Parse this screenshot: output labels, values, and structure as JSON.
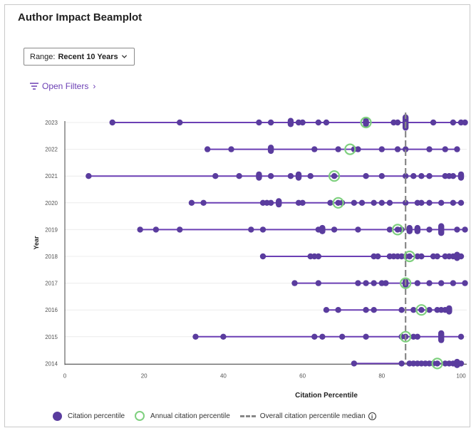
{
  "page": {
    "title": "Author Impact Beamplot",
    "range_label": "Range:",
    "range_value": "Recent 10 Years",
    "open_filters": "Open Filters"
  },
  "legend": {
    "citation": "Citation percentile",
    "annual": "Annual citation percentile",
    "median": "Overall citation percentile median"
  },
  "colors": {
    "accent": "#6b3fb4",
    "dot": "#5a3c9e",
    "ring": "#7fd07f",
    "median": "#888888"
  },
  "chart_data": {
    "type": "scatter",
    "xlabel": "Citation Percentile",
    "ylabel": "Year",
    "xlim": [
      0,
      100
    ],
    "xticks": [
      0,
      20,
      40,
      60,
      80,
      100
    ],
    "categories": [
      "2023",
      "2022",
      "2021",
      "2020",
      "2019",
      "2018",
      "2017",
      "2016",
      "2015",
      "2014"
    ],
    "median": 86,
    "series": [
      {
        "year": "2023",
        "annual": 76,
        "points": [
          12,
          29,
          49,
          52,
          57,
          57,
          59,
          60,
          64,
          66,
          76,
          76,
          83,
          84,
          86,
          86,
          86,
          86,
          93,
          98,
          100,
          101
        ]
      },
      {
        "year": "2022",
        "annual": 72,
        "points": [
          36,
          42,
          52,
          52,
          63,
          69,
          73,
          74,
          80,
          84,
          86,
          92,
          96,
          99
        ]
      },
      {
        "year": "2021",
        "annual": 68,
        "points": [
          6,
          38,
          44,
          49,
          49,
          52,
          57,
          59,
          59,
          62,
          68,
          76,
          80,
          86,
          88,
          90,
          92,
          96,
          97,
          98,
          100,
          100
        ]
      },
      {
        "year": "2020",
        "annual": 69,
        "points": [
          32,
          35,
          50,
          51,
          52,
          54,
          54,
          59,
          60,
          67,
          69,
          70,
          73,
          75,
          78,
          80,
          82,
          86,
          89,
          90,
          92,
          95,
          98,
          100
        ]
      },
      {
        "year": "2019",
        "annual": 84,
        "points": [
          19,
          23,
          29,
          47,
          50,
          64,
          65,
          65,
          68,
          74,
          82,
          84,
          85,
          87,
          87,
          89,
          89,
          92,
          95,
          95,
          95,
          99,
          101
        ]
      },
      {
        "year": "2018",
        "annual": 87,
        "points": [
          50,
          62,
          63,
          64,
          78,
          79,
          82,
          83,
          84,
          85,
          86,
          87,
          89,
          90,
          93,
          94,
          96,
          97,
          98,
          99,
          99,
          100
        ]
      },
      {
        "year": "2017",
        "annual": 86,
        "points": [
          58,
          64,
          74,
          76,
          78,
          80,
          81,
          86,
          86,
          89,
          92,
          95,
          98,
          101
        ]
      },
      {
        "year": "2016",
        "annual": 90,
        "points": [
          66,
          69,
          76,
          78,
          85,
          88,
          90,
          92,
          94,
          95,
          96,
          97,
          97
        ]
      },
      {
        "year": "2015",
        "annual": 86,
        "points": [
          33,
          40,
          63,
          65,
          70,
          76,
          85,
          86,
          88,
          89,
          95,
          95,
          95,
          100
        ]
      },
      {
        "year": "2014",
        "annual": 94,
        "points": [
          73,
          85,
          87,
          88,
          89,
          90,
          91,
          92,
          93,
          94,
          96,
          97,
          98,
          99,
          99,
          100
        ]
      }
    ]
  }
}
